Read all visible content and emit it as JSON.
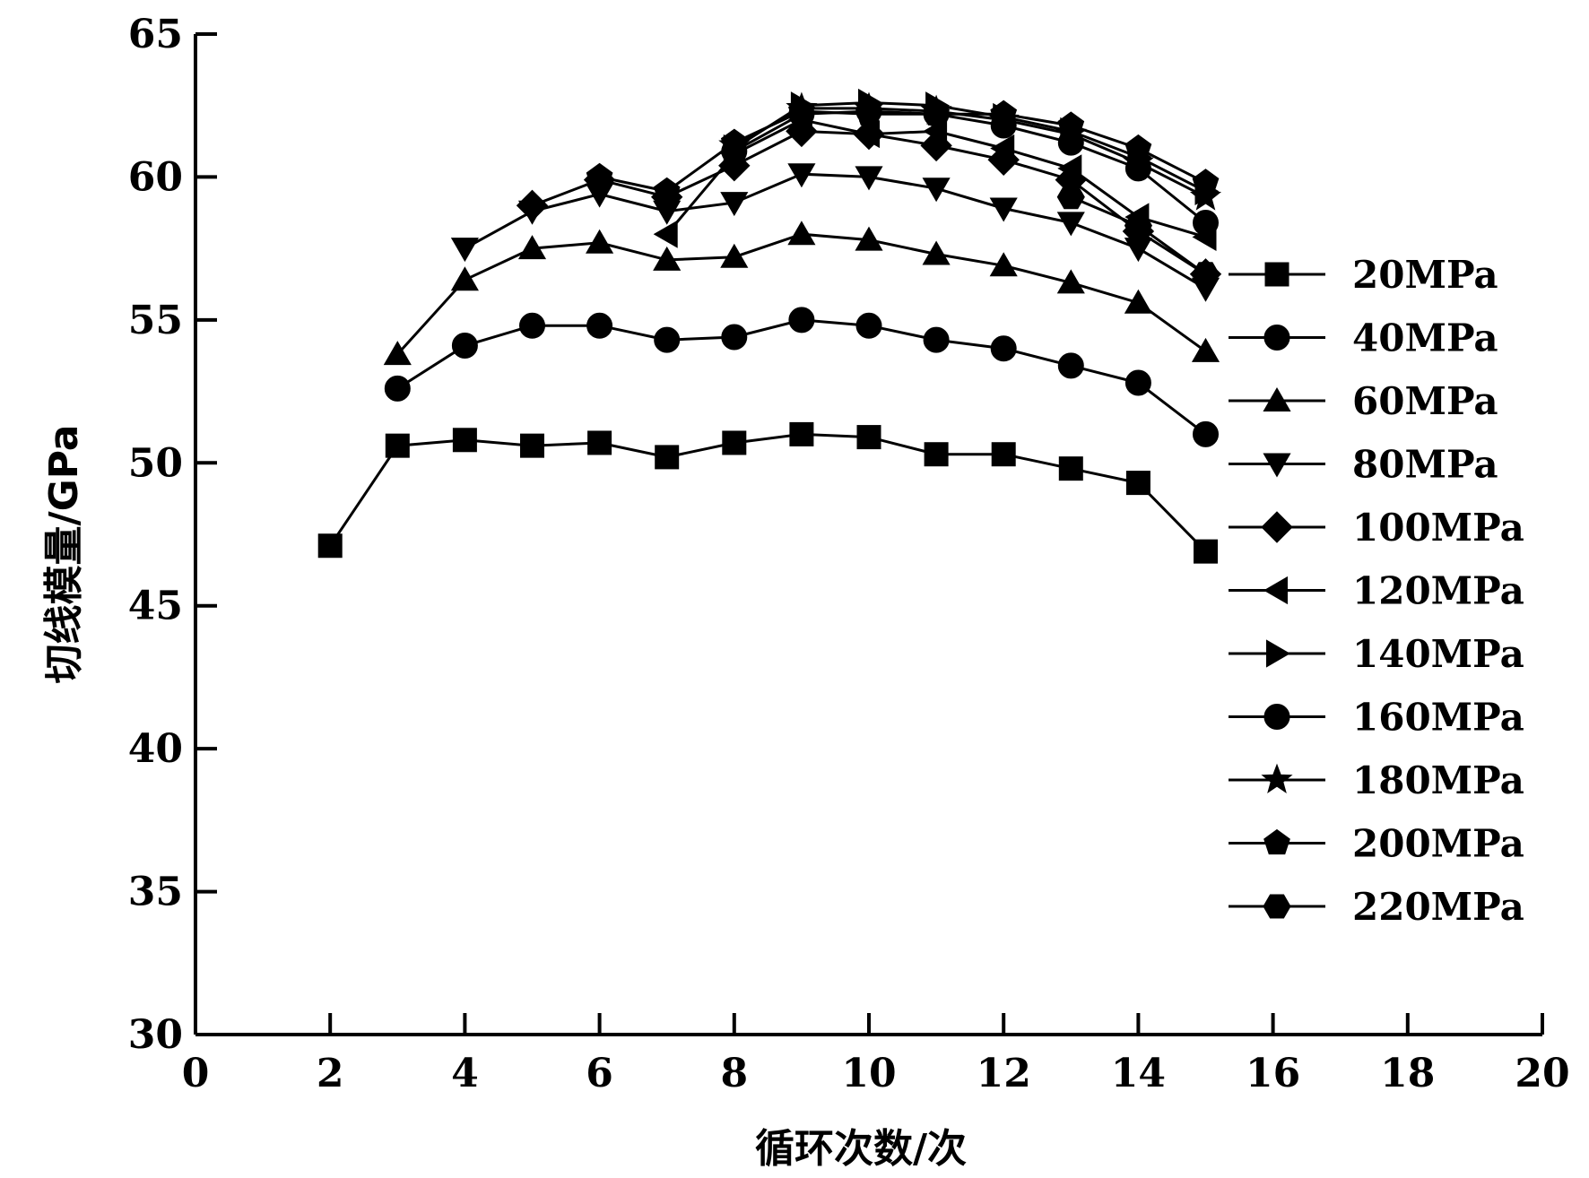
{
  "chart_data": {
    "type": "line",
    "title": "",
    "xlabel": "循环次数/次",
    "ylabel": "切线模量/GPa",
    "xlim": [
      0,
      20
    ],
    "ylim": [
      30,
      65
    ],
    "xticks": [
      0,
      2,
      4,
      6,
      8,
      10,
      12,
      14,
      16,
      18,
      20
    ],
    "yticks": [
      30,
      35,
      40,
      45,
      50,
      55,
      60,
      65
    ],
    "grid": false,
    "legend_position": "right",
    "series": [
      {
        "name": "20MPa",
        "marker": "square",
        "x": [
          2,
          3,
          4,
          5,
          6,
          7,
          8,
          9,
          10,
          11,
          12,
          13,
          14,
          15
        ],
        "y": [
          47.1,
          50.6,
          50.8,
          50.6,
          50.7,
          50.2,
          50.7,
          51.0,
          50.9,
          50.3,
          50.3,
          49.8,
          49.3,
          46.9
        ]
      },
      {
        "name": "40MPa",
        "marker": "circle",
        "x": [
          3,
          4,
          5,
          6,
          7,
          8,
          9,
          10,
          11,
          12,
          13,
          14,
          15
        ],
        "y": [
          52.6,
          54.1,
          54.8,
          54.8,
          54.3,
          54.4,
          55.0,
          54.8,
          54.3,
          54.0,
          53.4,
          52.8,
          51.0
        ]
      },
      {
        "name": "60MPa",
        "marker": "triangle-up",
        "x": [
          3,
          4,
          5,
          6,
          7,
          8,
          9,
          10,
          11,
          12,
          13,
          14,
          15
        ],
        "y": [
          53.8,
          56.4,
          57.5,
          57.7,
          57.1,
          57.2,
          58.0,
          57.8,
          57.3,
          56.9,
          56.3,
          55.6,
          53.9
        ]
      },
      {
        "name": "80MPa",
        "marker": "triangle-down",
        "x": [
          4,
          5,
          6,
          7,
          8,
          9,
          10,
          11,
          12,
          13,
          14,
          15
        ],
        "y": [
          57.5,
          58.8,
          59.4,
          58.8,
          59.1,
          60.1,
          60.0,
          59.6,
          58.9,
          58.4,
          57.5,
          56.1
        ]
      },
      {
        "name": "100MPa",
        "marker": "diamond",
        "x": [
          5,
          6,
          7,
          8,
          9,
          10,
          11,
          12,
          13,
          14,
          15
        ],
        "y": [
          59.0,
          59.9,
          59.3,
          60.4,
          61.6,
          61.5,
          61.1,
          60.6,
          59.9,
          58.1,
          56.6
        ]
      },
      {
        "name": "120MPa",
        "marker": "triangle-left",
        "x": [
          7,
          8,
          9,
          10,
          11,
          12,
          13,
          14,
          15
        ],
        "y": [
          58.0,
          60.8,
          62.0,
          61.5,
          61.6,
          61.0,
          60.3,
          58.6,
          57.9
        ]
      },
      {
        "name": "140MPa",
        "marker": "triangle-right",
        "x": [
          8,
          9,
          10,
          11,
          12,
          13,
          14,
          15
        ],
        "y": [
          61.0,
          62.5,
          62.6,
          62.5,
          62.1,
          61.6,
          60.7,
          59.5
        ]
      },
      {
        "name": "160MPa",
        "marker": "circle",
        "x": [
          8,
          9,
          10,
          11,
          12,
          13,
          14,
          15
        ],
        "y": [
          60.9,
          62.2,
          62.3,
          62.2,
          61.8,
          61.2,
          60.3,
          58.4
        ]
      },
      {
        "name": "180MPa",
        "marker": "star",
        "x": [
          8,
          9,
          10,
          11,
          12,
          13,
          14,
          15
        ],
        "y": [
          61.1,
          62.4,
          62.4,
          62.3,
          62.0,
          61.5,
          60.5,
          59.3
        ]
      },
      {
        "name": "200MPa",
        "marker": "pentagon",
        "x": [
          6,
          7,
          8,
          9,
          10,
          11,
          12,
          13,
          14,
          15
        ],
        "y": [
          60.0,
          59.5,
          61.2,
          62.3,
          62.2,
          62.2,
          62.2,
          61.8,
          61.0,
          59.8
        ]
      },
      {
        "name": "220MPa",
        "marker": "hexagon",
        "x": [
          13,
          14,
          15
        ],
        "y": [
          59.3,
          58.3,
          56.6
        ]
      }
    ]
  }
}
